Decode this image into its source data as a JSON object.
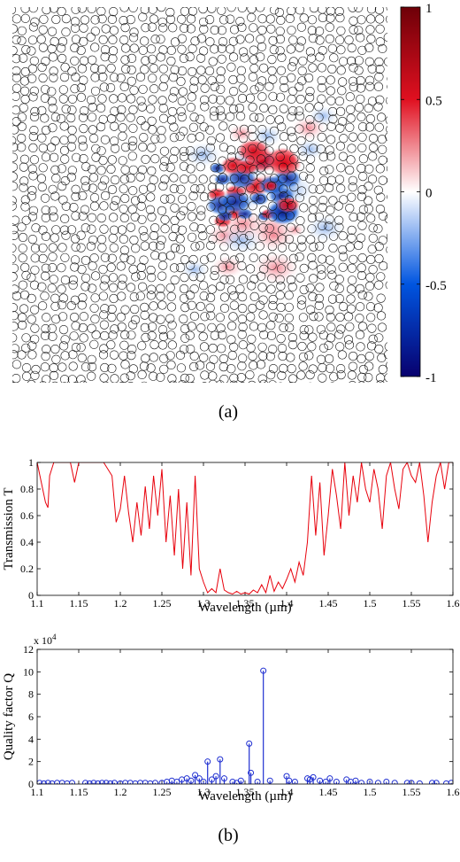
{
  "panel_a_label": "(a)",
  "panel_b_label": "(b)",
  "colors": {
    "transmission_line": "#e8000b",
    "quality_stem": "#1f2fd1",
    "scatterer_outline": "#111111",
    "colormap": [
      "#08006e",
      "#0055e0",
      "#ffffff",
      "#e01020",
      "#6e0008"
    ]
  },
  "chart_data": [
    {
      "type": "heatmap",
      "description_source": "field map over disordered circular scatterers",
      "colorbar": {
        "range": [
          -1,
          1
        ],
        "ticks": [
          1,
          0.5,
          0,
          -0.5,
          -1
        ],
        "tick_labels": [
          "1",
          "0.5",
          "0",
          "-0.5",
          "-1"
        ]
      }
    },
    {
      "type": "line",
      "xlabel": "Wavelength (µm)",
      "ylabel": "Transmission T",
      "xlim": [
        1.1,
        1.6
      ],
      "ylim": [
        0,
        1
      ],
      "xticks": [
        "1.1",
        "1.15",
        "1.2",
        "1.25",
        "1.3",
        "1.35",
        "1.4",
        "1.45",
        "1.5",
        "1.55",
        "1.6"
      ],
      "yticks": [
        "0",
        "0.2",
        "0.4",
        "0.6",
        "0.8",
        "1"
      ],
      "series": [
        {
          "x": [
            1.1,
            1.105,
            1.11,
            1.113,
            1.115,
            1.12,
            1.13,
            1.14,
            1.145,
            1.15,
            1.16,
            1.17,
            1.18,
            1.19,
            1.195,
            1.2,
            1.205,
            1.21,
            1.215,
            1.22,
            1.225,
            1.23,
            1.235,
            1.24,
            1.245,
            1.25,
            1.255,
            1.26,
            1.265,
            1.27,
            1.275,
            1.28,
            1.285,
            1.29,
            1.295,
            1.3,
            1.305,
            1.31,
            1.315,
            1.32,
            1.325,
            1.33,
            1.335,
            1.34,
            1.345,
            1.35,
            1.355,
            1.36,
            1.365,
            1.37,
            1.375,
            1.38,
            1.385,
            1.39,
            1.395,
            1.4,
            1.405,
            1.41,
            1.415,
            1.42,
            1.425,
            1.43,
            1.435,
            1.44,
            1.445,
            1.45,
            1.455,
            1.46,
            1.465,
            1.47,
            1.475,
            1.48,
            1.485,
            1.49,
            1.495,
            1.5,
            1.505,
            1.51,
            1.515,
            1.52,
            1.525,
            1.53,
            1.535,
            1.54,
            1.545,
            1.55,
            1.555,
            1.56,
            1.565,
            1.57,
            1.575,
            1.58,
            1.585,
            1.59,
            1.595,
            1.6
          ],
          "y": [
            1.0,
            0.85,
            0.7,
            0.66,
            0.9,
            1.0,
            1.0,
            1.0,
            0.85,
            1.0,
            1.0,
            1.0,
            1.0,
            0.9,
            0.55,
            0.65,
            0.9,
            0.62,
            0.4,
            0.7,
            0.45,
            0.82,
            0.5,
            0.9,
            0.6,
            0.95,
            0.4,
            0.75,
            0.3,
            0.8,
            0.2,
            0.7,
            0.15,
            0.9,
            0.2,
            0.1,
            0.02,
            0.05,
            0.02,
            0.2,
            0.04,
            0.02,
            0.01,
            0.03,
            0.01,
            0.02,
            0.01,
            0.04,
            0.02,
            0.08,
            0.02,
            0.15,
            0.03,
            0.1,
            0.05,
            0.12,
            0.2,
            0.1,
            0.25,
            0.15,
            0.4,
            0.9,
            0.45,
            0.85,
            0.3,
            0.6,
            0.95,
            0.75,
            0.5,
            1.0,
            0.6,
            0.9,
            0.7,
            1.0,
            0.8,
            0.7,
            0.95,
            0.8,
            0.5,
            0.9,
            1.0,
            0.8,
            0.65,
            0.95,
            1.0,
            0.9,
            0.85,
            1.0,
            0.75,
            0.4,
            0.7,
            0.9,
            1.0,
            0.8,
            1.0,
            1.0
          ]
        }
      ]
    },
    {
      "type": "scatter",
      "style": "stem",
      "xlabel": "Wavelength (µm)",
      "ylabel": "Quality factor Q",
      "multiplier_label": "x 10",
      "multiplier_exponent": "4",
      "xlim": [
        1.1,
        1.6
      ],
      "ylim": [
        0,
        12
      ],
      "xticks": [
        "1.1",
        "1.15",
        "1.2",
        "1.25",
        "1.3",
        "1.35",
        "1.4",
        "1.45",
        "1.5",
        "1.55",
        "1.6"
      ],
      "yticks": [
        "0",
        "2",
        "4",
        "6",
        "8",
        "10",
        "12"
      ],
      "series": [
        {
          "x": [
            1.103,
            1.108,
            1.113,
            1.118,
            1.124,
            1.13,
            1.136,
            1.142,
            1.158,
            1.163,
            1.168,
            1.173,
            1.178,
            1.183,
            1.188,
            1.193,
            1.2,
            1.206,
            1.212,
            1.218,
            1.224,
            1.23,
            1.236,
            1.242,
            1.25,
            1.256,
            1.262,
            1.268,
            1.274,
            1.28,
            1.285,
            1.29,
            1.295,
            1.3,
            1.305,
            1.31,
            1.315,
            1.32,
            1.325,
            1.335,
            1.34,
            1.345,
            1.355,
            1.357,
            1.365,
            1.372,
            1.38,
            1.4,
            1.403,
            1.41,
            1.425,
            1.428,
            1.432,
            1.44,
            1.447,
            1.452,
            1.46,
            1.472,
            1.477,
            1.483,
            1.49,
            1.5,
            1.51,
            1.52,
            1.53,
            1.545,
            1.55,
            1.56,
            1.575,
            1.58,
            1.592,
            1.598
          ],
          "y": [
            0.1,
            0.05,
            0.1,
            0.05,
            0.1,
            0.1,
            0.05,
            0.1,
            0.1,
            0.05,
            0.1,
            0.05,
            0.1,
            0.1,
            0.05,
            0.1,
            0.05,
            0.1,
            0.1,
            0.05,
            0.1,
            0.1,
            0.05,
            0.1,
            0.1,
            0.2,
            0.3,
            0.2,
            0.4,
            0.5,
            0.3,
            0.8,
            0.5,
            0.2,
            2.0,
            0.4,
            0.7,
            2.2,
            0.5,
            0.2,
            0.1,
            0.3,
            3.6,
            1.0,
            0.2,
            10.1,
            0.3,
            0.7,
            0.3,
            0.2,
            0.5,
            0.4,
            0.6,
            0.3,
            0.2,
            0.5,
            0.2,
            0.4,
            0.2,
            0.3,
            0.1,
            0.2,
            0.1,
            0.2,
            0.1,
            0.1,
            0.1,
            0.05,
            0.1,
            0.1,
            0.05,
            0.1
          ]
        }
      ]
    }
  ]
}
